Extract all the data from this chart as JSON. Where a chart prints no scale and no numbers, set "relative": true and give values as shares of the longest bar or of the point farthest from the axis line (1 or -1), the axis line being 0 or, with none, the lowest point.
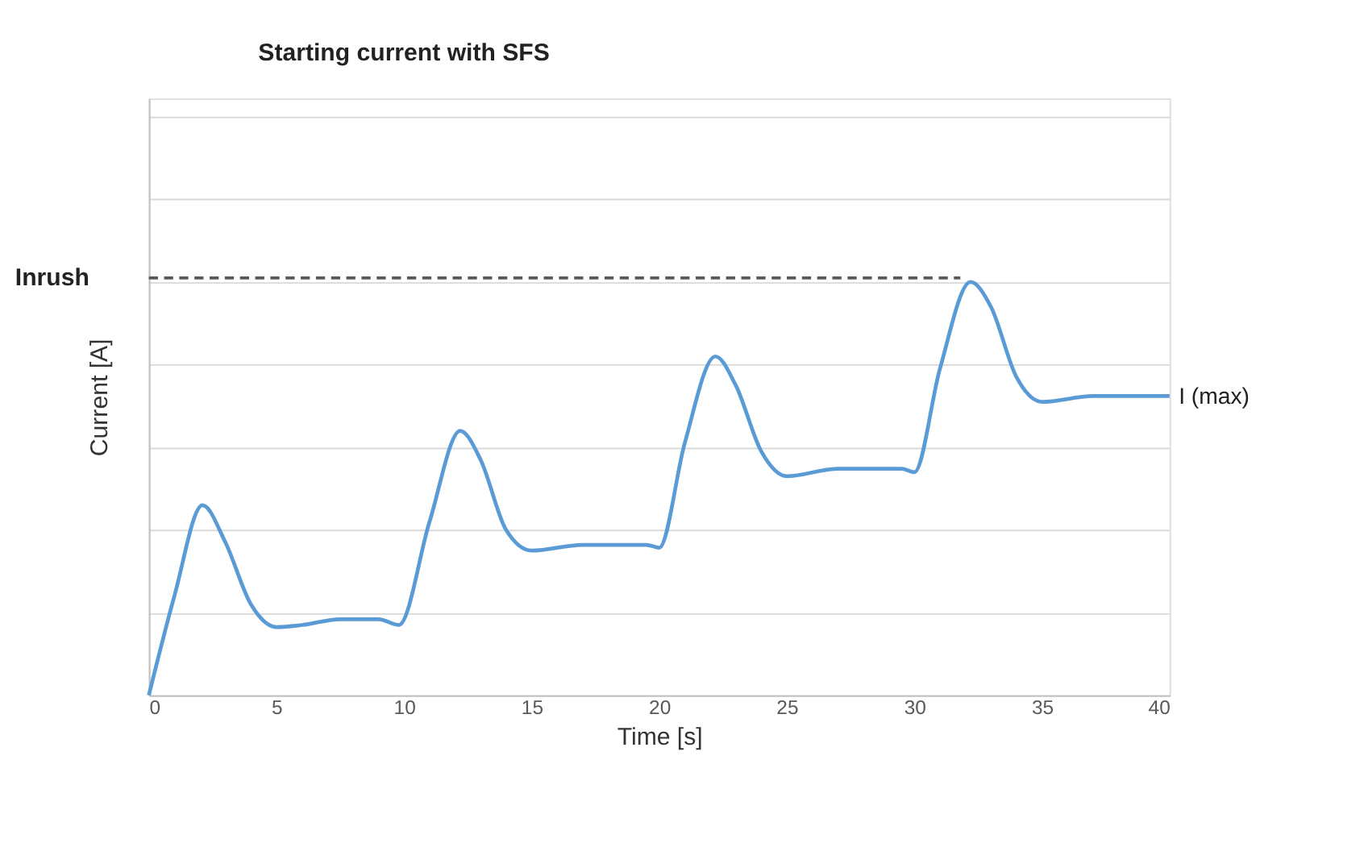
{
  "chart_data": {
    "type": "line",
    "title": "Starting current with SFS",
    "xlabel": "Time [s]",
    "ylabel": "Current [A]",
    "relative": true,
    "x": [
      0,
      1,
      2.1,
      3,
      4,
      5,
      6,
      7.5,
      9,
      9.8,
      11,
      12.2,
      13,
      14,
      15,
      17,
      19.5,
      20,
      21,
      22.2,
      23,
      24,
      25,
      27,
      29.5,
      30,
      31,
      32.2,
      33,
      34,
      35,
      37,
      40
    ],
    "series": [
      {
        "color": "#5b9bd5",
        "values": [
          0,
          0.24,
          0.46,
          0.37,
          0.22,
          0.165,
          0.17,
          0.184,
          0.184,
          0.17,
          0.42,
          0.64,
          0.57,
          0.4,
          0.35,
          0.364,
          0.364,
          0.357,
          0.61,
          0.82,
          0.75,
          0.59,
          0.53,
          0.548,
          0.548,
          0.54,
          0.79,
          1,
          0.94,
          0.77,
          0.71,
          0.724,
          0.724
        ]
      }
    ],
    "xlim": [
      0,
      40
    ],
    "xticks": [
      0,
      5,
      10,
      15,
      20,
      25,
      30,
      35,
      40
    ],
    "ref_lines": [
      {
        "axis": "y",
        "value": 1.01,
        "label": "Inrush",
        "color": "#595959",
        "line_style": "dashed"
      }
    ],
    "annotations": [
      {
        "text": "I (max)",
        "x": 40,
        "y": 0.724
      }
    ],
    "grid": "y",
    "marker": "none",
    "line_style": "solid"
  }
}
